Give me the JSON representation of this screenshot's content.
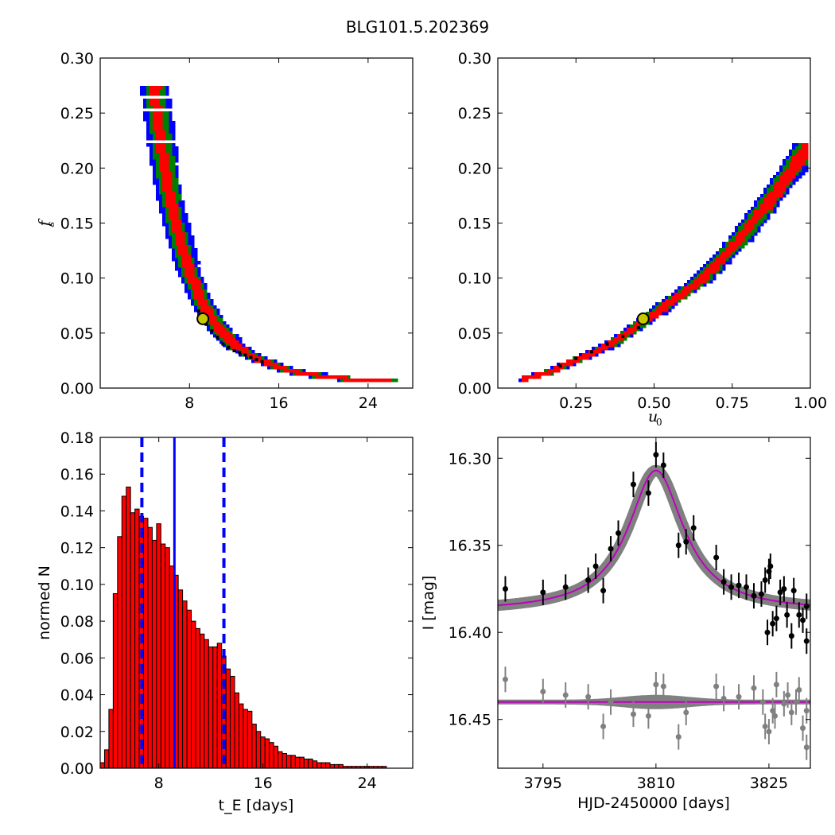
{
  "figure": {
    "title": "BLG101.5.202369"
  },
  "chart_data": [
    {
      "id": "fs_vs_tE",
      "type": "heatmap",
      "xlabel": "",
      "ylabel": "f_s",
      "xlim": [
        0,
        28
      ],
      "ylim": [
        0,
        0.3
      ],
      "xticks": [
        8,
        16,
        24
      ],
      "yticks": [
        0.0,
        0.05,
        0.1,
        0.15,
        0.2,
        0.25,
        0.3
      ],
      "ytick_labels": [
        "0.00",
        "0.05",
        "0.10",
        "0.15",
        "0.20",
        "0.25",
        "0.30"
      ],
      "levels": [
        "blue",
        "green",
        "red",
        "black"
      ],
      "ridge": [
        [
          4.8,
          0.275
        ],
        [
          5.2,
          0.24
        ],
        [
          5.6,
          0.21
        ],
        [
          6.0,
          0.185
        ],
        [
          6.5,
          0.16
        ],
        [
          7.0,
          0.14
        ],
        [
          7.5,
          0.12
        ],
        [
          8.0,
          0.105
        ],
        [
          9.0,
          0.08
        ],
        [
          10.0,
          0.063
        ],
        [
          11.0,
          0.05
        ],
        [
          12.0,
          0.04
        ],
        [
          14.0,
          0.028
        ],
        [
          16.0,
          0.02
        ],
        [
          18.0,
          0.015
        ],
        [
          20.0,
          0.012
        ],
        [
          22.0,
          0.01
        ],
        [
          26.0,
          0.01
        ]
      ],
      "best_fit": {
        "x": 9.2,
        "y": 0.063
      },
      "colors": {
        "blue": "#0000ff",
        "green": "#008000",
        "red": "#ff0000",
        "black": "#000000",
        "marker": "#c8c800"
      }
    },
    {
      "id": "fs_vs_u0",
      "type": "heatmap",
      "xlabel": "u_0",
      "ylabel": "",
      "xlim": [
        0,
        1.0
      ],
      "ylim": [
        0,
        0.3
      ],
      "xticks": [
        0.25,
        0.5,
        0.75,
        1.0
      ],
      "xtick_labels": [
        "0.25",
        "0.50",
        "0.75",
        "1.00"
      ],
      "yticks": [
        0.0,
        0.05,
        0.1,
        0.15,
        0.2,
        0.25,
        0.3
      ],
      "ytick_labels": [
        "0.00",
        "0.05",
        "0.10",
        "0.15",
        "0.20",
        "0.25",
        "0.30"
      ],
      "ridge": [
        [
          0.08,
          0.01
        ],
        [
          0.15,
          0.015
        ],
        [
          0.25,
          0.027
        ],
        [
          0.35,
          0.04
        ],
        [
          0.47,
          0.063
        ],
        [
          0.55,
          0.08
        ],
        [
          0.65,
          0.1
        ],
        [
          0.75,
          0.13
        ],
        [
          0.85,
          0.165
        ],
        [
          0.95,
          0.205
        ],
        [
          1.0,
          0.225
        ]
      ],
      "best_fit": {
        "x": 0.465,
        "y": 0.063
      }
    },
    {
      "id": "tE_histogram",
      "type": "bar",
      "xlabel": "t_E [days]",
      "ylabel": "normed N",
      "xlim": [
        3.5,
        27.5
      ],
      "ylim": [
        0,
        0.18
      ],
      "xticks": [
        8,
        16,
        24
      ],
      "yticks": [
        0.0,
        0.02,
        0.04,
        0.06,
        0.08,
        0.1,
        0.12,
        0.14,
        0.16,
        0.18
      ],
      "ytick_labels": [
        "0.00",
        "0.02",
        "0.04",
        "0.06",
        "0.08",
        "0.10",
        "0.12",
        "0.14",
        "0.16",
        "0.18"
      ],
      "bin_width": 0.333,
      "bin_start": 3.5,
      "values": [
        0.003,
        0.01,
        0.032,
        0.095,
        0.126,
        0.148,
        0.153,
        0.139,
        0.141,
        0.137,
        0.136,
        0.131,
        0.124,
        0.133,
        0.122,
        0.12,
        0.11,
        0.105,
        0.097,
        0.091,
        0.086,
        0.08,
        0.076,
        0.073,
        0.07,
        0.066,
        0.066,
        0.068,
        0.061,
        0.054,
        0.05,
        0.041,
        0.035,
        0.032,
        0.031,
        0.024,
        0.02,
        0.017,
        0.016,
        0.014,
        0.012,
        0.009,
        0.008,
        0.007,
        0.007,
        0.006,
        0.006,
        0.005,
        0.005,
        0.004,
        0.003,
        0.003,
        0.003,
        0.002,
        0.002,
        0.002,
        0.001,
        0.001,
        0.001,
        0.001,
        0.001,
        0.001,
        0.001,
        0.001,
        0.001,
        0.001,
        0.0,
        0.0,
        0.0,
        0.0,
        0.0,
        0.0
      ],
      "median": 9.2,
      "bounds": [
        6.7,
        13.0
      ],
      "colors": {
        "bar": "#ff0000",
        "edge": "#000000",
        "line": "#0000ff"
      }
    },
    {
      "id": "light_curve",
      "type": "scatter",
      "xlabel": "HJD-2450000 [days]",
      "ylabel": "I [mag]",
      "xlim": [
        3789,
        3830.5
      ],
      "ylim": [
        16.478,
        16.288
      ],
      "xticks": [
        3795,
        3810,
        3825
      ],
      "yticks": [
        16.3,
        16.35,
        16.4,
        16.45
      ],
      "ytick_labels": [
        "16.30",
        "16.35",
        "16.40",
        "16.45"
      ],
      "model": {
        "t0": 3810,
        "base": 16.388,
        "peak": 16.307,
        "width": 4.5,
        "resid_base": 16.44
      },
      "points": [
        [
          3790,
          16.375
        ],
        [
          3795,
          16.377
        ],
        [
          3798,
          16.374
        ],
        [
          3801,
          16.37
        ],
        [
          3802,
          16.362
        ],
        [
          3803,
          16.376
        ],
        [
          3804,
          16.352
        ],
        [
          3805,
          16.343
        ],
        [
          3807,
          16.315
        ],
        [
          3809,
          16.32
        ],
        [
          3810,
          16.298
        ],
        [
          3811,
          16.304
        ],
        [
          3813,
          16.35
        ],
        [
          3814,
          16.348
        ],
        [
          3815,
          16.34
        ],
        [
          3818,
          16.357
        ],
        [
          3819,
          16.371
        ],
        [
          3820,
          16.374
        ],
        [
          3821,
          16.373
        ],
        [
          3822,
          16.374
        ],
        [
          3823,
          16.379
        ],
        [
          3824,
          16.378
        ],
        [
          3824.5,
          16.37
        ],
        [
          3824.8,
          16.4
        ],
        [
          3825,
          16.365
        ],
        [
          3825.2,
          16.362
        ],
        [
          3825.5,
          16.395
        ],
        [
          3826,
          16.392
        ],
        [
          3826.5,
          16.377
        ],
        [
          3827,
          16.375
        ],
        [
          3827.4,
          16.39
        ],
        [
          3828,
          16.402
        ],
        [
          3828.3,
          16.376
        ],
        [
          3829,
          16.39
        ],
        [
          3829.5,
          16.393
        ],
        [
          3830,
          16.385
        ],
        [
          3830,
          16.405
        ]
      ],
      "residuals": [
        [
          3790,
          16.427
        ],
        [
          3795,
          16.434
        ],
        [
          3798,
          16.436
        ],
        [
          3801,
          16.437
        ],
        [
          3803,
          16.454
        ],
        [
          3804,
          16.44
        ],
        [
          3807,
          16.447
        ],
        [
          3809,
          16.448
        ],
        [
          3810,
          16.43
        ],
        [
          3811,
          16.431
        ],
        [
          3813,
          16.46
        ],
        [
          3814,
          16.446
        ],
        [
          3818,
          16.431
        ],
        [
          3819,
          16.438
        ],
        [
          3821,
          16.437
        ],
        [
          3823,
          16.432
        ],
        [
          3824.5,
          16.454
        ],
        [
          3825,
          16.457
        ],
        [
          3825.5,
          16.445
        ],
        [
          3826,
          16.43
        ],
        [
          3827,
          16.441
        ],
        [
          3828,
          16.446
        ],
        [
          3829,
          16.433
        ],
        [
          3829.5,
          16.455
        ],
        [
          3830,
          16.445
        ],
        [
          3830,
          16.466
        ],
        [
          3827.5,
          16.436
        ],
        [
          3828.6,
          16.44
        ],
        [
          3825.8,
          16.448
        ],
        [
          3824.2,
          16.44
        ]
      ],
      "colors": {
        "data": "#000000",
        "resid": "#808080",
        "band": "#808080",
        "model": "#c000c0"
      }
    }
  ]
}
